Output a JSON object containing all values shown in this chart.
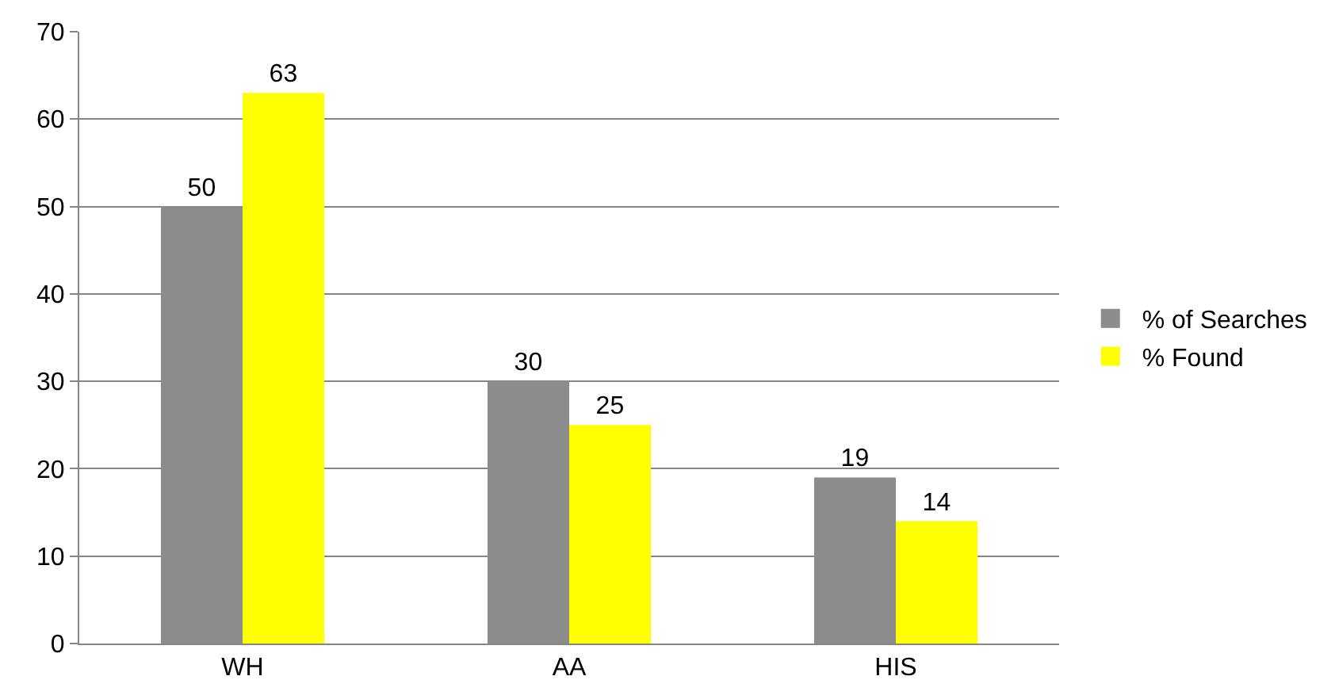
{
  "chart_data": {
    "type": "bar",
    "categories": [
      "WH",
      "AA",
      "HIS"
    ],
    "series": [
      {
        "name": "% of Searches",
        "color": "#8c8c8c",
        "values": [
          50,
          30,
          19
        ]
      },
      {
        "name": "% Found",
        "color": "#ffff00",
        "values": [
          63,
          25,
          14
        ]
      }
    ],
    "ylim": [
      0,
      70
    ],
    "yticks": [
      0,
      10,
      20,
      30,
      40,
      50,
      60,
      70
    ],
    "grid": "y",
    "legend": "right",
    "data_labels": true
  }
}
